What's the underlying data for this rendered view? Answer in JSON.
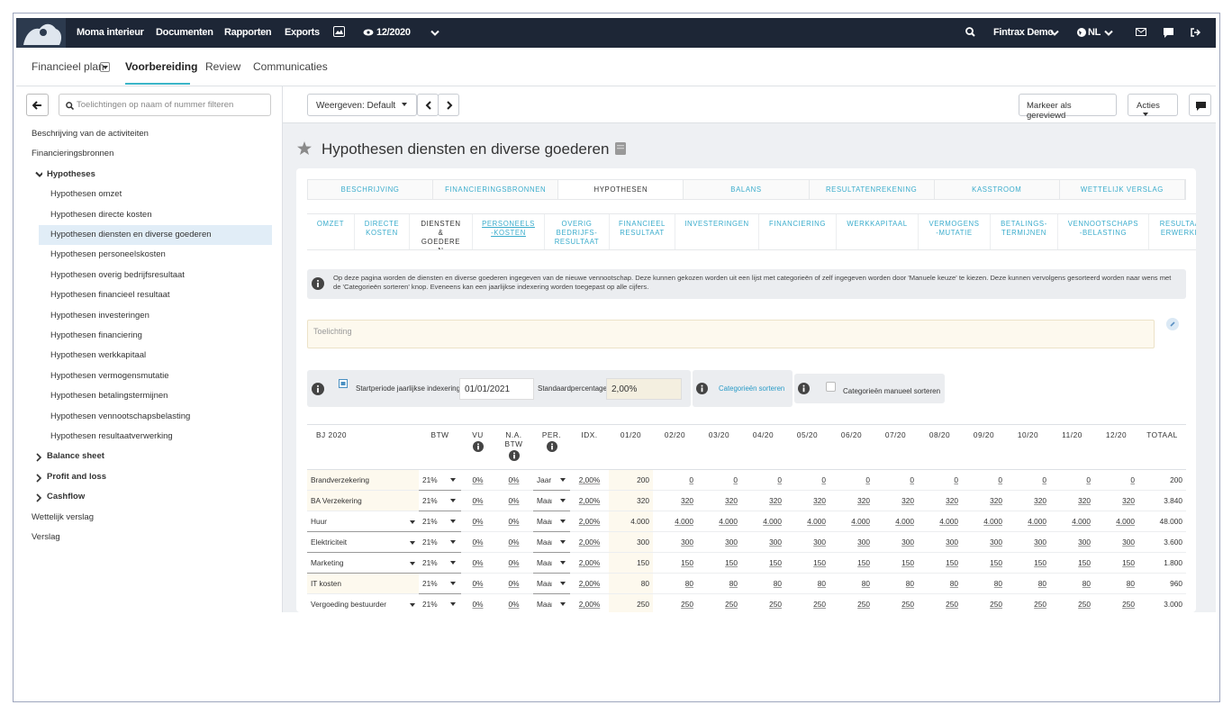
{
  "nav": {
    "brand": "Moma interieur",
    "items": [
      "Documenten",
      "Rapporten",
      "Exports"
    ],
    "period": "12/2020",
    "user": "Fintrax Demo",
    "language": "NL"
  },
  "subnav": {
    "items": [
      "Financieel plan",
      "Voorbereiding",
      "Review",
      "Communicaties"
    ],
    "active": 1
  },
  "sidebar": {
    "search_placeholder": "Toelichtingen op naam of nummer filteren",
    "items": [
      {
        "label": "Beschrijving van de activiteiten",
        "level": 0
      },
      {
        "label": "Financieringsbronnen",
        "level": 0
      },
      {
        "label": "Hypotheses",
        "level": 1,
        "toggle": "open"
      },
      {
        "label": "Hypothesen omzet",
        "level": 2
      },
      {
        "label": "Hypothesen directe kosten",
        "level": 2
      },
      {
        "label": "Hypothesen diensten en diverse goederen",
        "level": 2,
        "selected": true
      },
      {
        "label": "Hypothesen personeelskosten",
        "level": 2
      },
      {
        "label": "Hypothesen overig bedrijfsresultaat",
        "level": 2
      },
      {
        "label": "Hypothesen financieel resultaat",
        "level": 2
      },
      {
        "label": "Hypothesen investeringen",
        "level": 2
      },
      {
        "label": "Hypothesen financiering",
        "level": 2
      },
      {
        "label": "Hypothesen werkkapitaal",
        "level": 2
      },
      {
        "label": "Hypothesen vermogensmutatie",
        "level": 2
      },
      {
        "label": "Hypothesen betalingstermijnen",
        "level": 2
      },
      {
        "label": "Hypothesen vennootschapsbelasting",
        "level": 2
      },
      {
        "label": "Hypothesen resultaatverwerking",
        "level": 2
      },
      {
        "label": "Balance sheet",
        "level": 1,
        "toggle": "closed"
      },
      {
        "label": "Profit and loss",
        "level": 1,
        "toggle": "closed"
      },
      {
        "label": "Cashflow",
        "level": 1,
        "toggle": "closed"
      },
      {
        "label": "Wettelijk verslag",
        "level": 0
      },
      {
        "label": "Verslag",
        "level": 0
      }
    ]
  },
  "toolbar": {
    "view": "Weergeven: Default",
    "review": "Markeer als gereviewd",
    "actions": "Acties"
  },
  "page_title": "Hypothesen diensten en diverse goederen",
  "tabs": {
    "main": [
      "BESCHRIJVING",
      "FINANCIERINGSBRONNEN",
      "HYPOTHESEN",
      "BALANS",
      "RESULTATENREKENING",
      "KASSTROOM",
      "WETTELIJK VERSLAG"
    ],
    "main_active": 2,
    "sub": [
      "OMZET",
      "DIRECTE KOSTEN",
      "DIENSTEN & GOEDEREN",
      "PERSONEELS-KOSTEN",
      "OVERIG BEDRIJFS-RESULTAAT",
      "FINANCIEEL RESULTAAT",
      "INVESTERINGEN",
      "FINANCIERING",
      "WERKKAPITAAL",
      "VERMOGENS-MUTATIE",
      "BETALINGS-TERMIJNEN",
      "VENNOOTSCHAPS-BELASTING",
      "RESULTAATVERWERKING"
    ],
    "sub_active": 2,
    "sub_hover": 3
  },
  "info": "Op deze pagina worden de diensten en diverse goederen ingegeven van de nieuwe vennootschap. Deze kunnen gekozen worden uit een lijst met categorieën of zelf ingegeven worden door 'Manuele keuze' te kiezen. Deze kunnen vervolgens gesorteerd worden naar wens met de 'Categorieën sorteren' knop. Eveneens kan een jaarlijkse indexering worden toegepast op alle cijfers.",
  "toelichting_placeholder": "Toelichting",
  "controls": {
    "start_label": "Startperiode jaarlijkse indexering",
    "start_value": "01/01/2021",
    "percentage_label": "Standaardpercentage",
    "percentage_value": "2,00%",
    "sort_link": "Categorieën sorteren",
    "manual_sort": "Categorieën manueel sorteren"
  },
  "table": {
    "columns": [
      {
        "label": "BJ 2020"
      },
      {
        "label": "BTW"
      },
      {
        "label": "VU",
        "info": true
      },
      {
        "label": "N.A. BTW",
        "info": true
      },
      {
        "label": "PER.",
        "info": true
      },
      {
        "label": "IDX."
      },
      {
        "label": "01/20"
      },
      {
        "label": "02/20"
      },
      {
        "label": "03/20"
      },
      {
        "label": "04/20"
      },
      {
        "label": "05/20"
      },
      {
        "label": "06/20"
      },
      {
        "label": "07/20"
      },
      {
        "label": "08/20"
      },
      {
        "label": "09/20"
      },
      {
        "label": "10/20"
      },
      {
        "label": "11/20"
      },
      {
        "label": "12/20"
      },
      {
        "label": "TOTAAL"
      }
    ],
    "rows": [
      {
        "name": "Brandverzekering",
        "dropdown": false,
        "btw": "21%",
        "vu": "0%",
        "na_btw": "0%",
        "per": "Jaar",
        "idx": "2,00%",
        "months": [
          "200",
          "0",
          "0",
          "0",
          "0",
          "0",
          "0",
          "0",
          "0",
          "0",
          "0",
          "0"
        ],
        "total": "200"
      },
      {
        "name": "BA Verzekering",
        "dropdown": false,
        "btw": "21%",
        "vu": "0%",
        "na_btw": "0%",
        "per": "Maand",
        "idx": "2,00%",
        "months": [
          "320",
          "320",
          "320",
          "320",
          "320",
          "320",
          "320",
          "320",
          "320",
          "320",
          "320",
          "320"
        ],
        "total": "3.840"
      },
      {
        "name": "Huur",
        "dropdown": true,
        "btw": "21%",
        "vu": "0%",
        "na_btw": "0%",
        "per": "Maand",
        "idx": "2,00%",
        "months": [
          "4.000",
          "4.000",
          "4.000",
          "4.000",
          "4.000",
          "4.000",
          "4.000",
          "4.000",
          "4.000",
          "4.000",
          "4.000",
          "4.000"
        ],
        "total": "48.000"
      },
      {
        "name": "Elektriciteit",
        "dropdown": true,
        "btw": "21%",
        "vu": "0%",
        "na_btw": "0%",
        "per": "Maand",
        "idx": "2,00%",
        "months": [
          "300",
          "300",
          "300",
          "300",
          "300",
          "300",
          "300",
          "300",
          "300",
          "300",
          "300",
          "300"
        ],
        "total": "3.600"
      },
      {
        "name": "Marketing",
        "dropdown": true,
        "btw": "21%",
        "vu": "0%",
        "na_btw": "0%",
        "per": "Maand",
        "idx": "2,00%",
        "months": [
          "150",
          "150",
          "150",
          "150",
          "150",
          "150",
          "150",
          "150",
          "150",
          "150",
          "150",
          "150"
        ],
        "total": "1.800"
      },
      {
        "name": "IT kosten",
        "dropdown": false,
        "btw": "21%",
        "vu": "0%",
        "na_btw": "0%",
        "per": "Maand",
        "idx": "2,00%",
        "months": [
          "80",
          "80",
          "80",
          "80",
          "80",
          "80",
          "80",
          "80",
          "80",
          "80",
          "80",
          "80"
        ],
        "total": "960"
      },
      {
        "name": "Vergoeding bestuurder",
        "dropdown": true,
        "btw": "21%",
        "vu": "0%",
        "na_btw": "0%",
        "per": "Maand",
        "idx": "2,00%",
        "months": [
          "250",
          "250",
          "250",
          "250",
          "250",
          "250",
          "250",
          "250",
          "250",
          "250",
          "250",
          "250"
        ],
        "total": "3.000"
      }
    ]
  }
}
